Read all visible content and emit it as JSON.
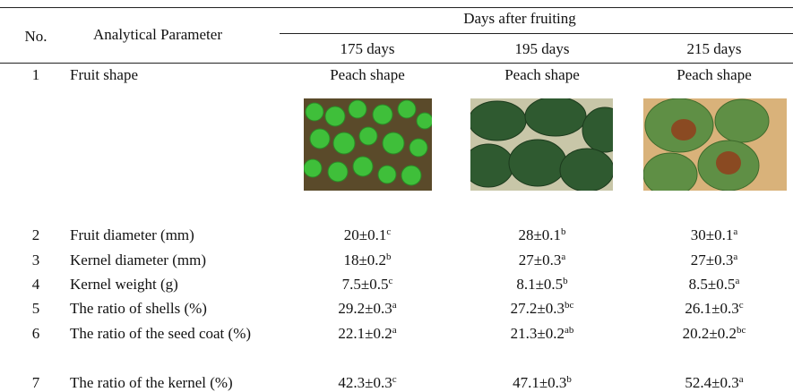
{
  "table": {
    "header": {
      "no": "No.",
      "parameter": "Analytical Parameter",
      "group": "Days after fruiting",
      "columns": [
        "175 days",
        "195 days",
        "215 days"
      ]
    },
    "rows": [
      {
        "no": "1",
        "parameter": "Fruit shape",
        "cells": [
          {
            "text": "Peach shape"
          },
          {
            "text": "Peach shape"
          },
          {
            "text": "Peach shape"
          }
        ]
      },
      {
        "no": "2",
        "parameter": "Fruit diameter (mm)",
        "cells": [
          {
            "text": "20±0.1",
            "sup": "c"
          },
          {
            "text": "28±0.1",
            "sup": "b"
          },
          {
            "text": "30±0.1",
            "sup": "a"
          }
        ]
      },
      {
        "no": "3",
        "parameter": "Kernel diameter (mm)",
        "cells": [
          {
            "text": "18±0.2",
            "sup": "b"
          },
          {
            "text": "27±0.3",
            "sup": "a"
          },
          {
            "text": "27±0.3",
            "sup": "a"
          }
        ]
      },
      {
        "no": "4",
        "parameter": "Kernel weight (g)",
        "cells": [
          {
            "text": "7.5±0.5",
            "sup": "c"
          },
          {
            "text": "8.1±0.5",
            "sup": "b"
          },
          {
            "text": "8.5±0.5",
            "sup": "a"
          }
        ]
      },
      {
        "no": "5",
        "parameter": "The ratio of shells (%)",
        "cells": [
          {
            "text": "29.2±0.3",
            "sup": "a"
          },
          {
            "text": "27.2±0.3",
            "sup": "bc"
          },
          {
            "text": "26.1±0.3",
            "sup": "c"
          }
        ]
      },
      {
        "no": "6",
        "parameter": "The ratio of the seed coat (%)",
        "cells": [
          {
            "text": "22.1±0.2",
            "sup": "a"
          },
          {
            "text": "21.3±0.2",
            "sup": "ab"
          },
          {
            "text": "20.2±0.2",
            "sup": "bc"
          }
        ]
      },
      {
        "no": "7",
        "parameter": "The ratio of the kernel (%)",
        "cells": [
          {
            "text": "42.3±0.3",
            "sup": "c"
          },
          {
            "text": "47.1±0.3",
            "sup": "b"
          },
          {
            "text": "52.4±0.3",
            "sup": "a"
          }
        ]
      }
    ]
  }
}
